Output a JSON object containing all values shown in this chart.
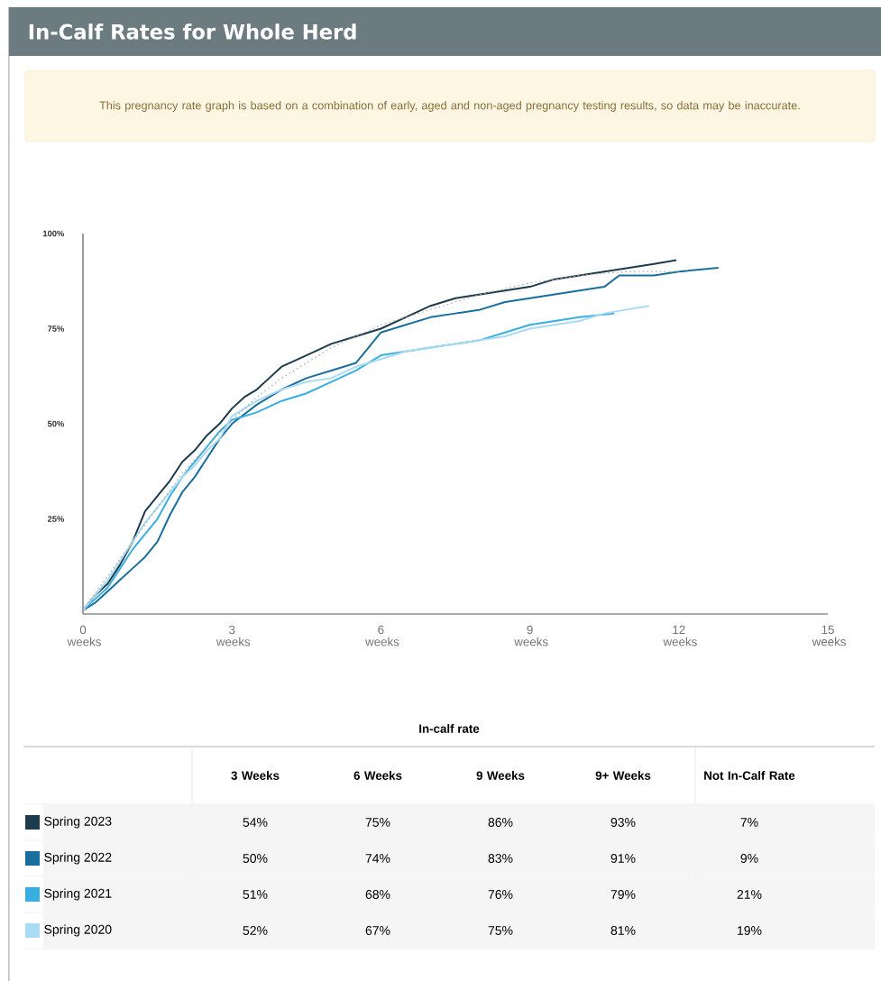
{
  "chart_data": {
    "type": "line",
    "title": "In-Calf Rates for Whole Herd",
    "xlim": [
      0,
      15
    ],
    "ylim": [
      0,
      100
    ],
    "xticks": [
      {
        "value": 0,
        "label": "0 weeks"
      },
      {
        "value": 3,
        "label": "3 weeks"
      },
      {
        "value": 6,
        "label": "6 weeks"
      },
      {
        "value": 9,
        "label": "9 weeks"
      },
      {
        "value": 12,
        "label": "12 weeks"
      },
      {
        "value": 15,
        "label": "15 weeks"
      }
    ],
    "yticks": [
      {
        "value": 25,
        "label": "25%"
      },
      {
        "value": 50,
        "label": "50%"
      },
      {
        "value": 75,
        "label": "75%"
      },
      {
        "value": 100,
        "label": "100%"
      }
    ],
    "grid": false,
    "legend": "bottom",
    "line_style": "solid",
    "series": [
      {
        "name": "Spring 2023",
        "color": "#1d3b4b",
        "x": [
          0,
          0.25,
          0.5,
          0.75,
          1,
          1.25,
          1.5,
          1.75,
          2,
          2.25,
          2.5,
          2.75,
          3,
          3.25,
          3.5,
          3.75,
          4,
          4.5,
          5,
          5.5,
          6,
          6.5,
          7,
          7.5,
          8,
          8.5,
          9,
          9.5,
          10,
          10.5,
          11,
          11.5,
          11.95
        ],
        "values": [
          1,
          5,
          8,
          13,
          19,
          27,
          31,
          35,
          40,
          43,
          47,
          50,
          54,
          57,
          59,
          62,
          65,
          68,
          71,
          73,
          75,
          78,
          81,
          83,
          84,
          85,
          86,
          88,
          89,
          90,
          91,
          92,
          93
        ]
      },
      {
        "name": "Spring 2022",
        "color": "#1a6e9e",
        "x": [
          0,
          0.25,
          0.5,
          0.75,
          1,
          1.25,
          1.5,
          1.75,
          2,
          2.25,
          2.5,
          2.75,
          3,
          3.5,
          4,
          4.5,
          5,
          5.5,
          5.75,
          6,
          6.5,
          7,
          7.5,
          8,
          8.5,
          9,
          9.5,
          10,
          10.5,
          10.8,
          11.5,
          12,
          12.8
        ],
        "values": [
          1,
          3,
          6,
          9,
          12,
          15,
          19,
          26,
          32,
          36,
          41,
          46,
          50,
          55,
          59,
          62,
          64,
          66,
          70,
          74,
          76,
          78,
          79,
          80,
          82,
          83,
          84,
          85,
          86,
          89,
          89,
          90,
          91
        ]
      },
      {
        "name": "Spring 2021",
        "color": "#3aaee0",
        "x": [
          0,
          0.25,
          0.5,
          0.75,
          1,
          1.25,
          1.5,
          1.75,
          2,
          2.25,
          2.5,
          2.75,
          3,
          3.5,
          4,
          4.5,
          5,
          5.5,
          6,
          6.5,
          7,
          7.5,
          8,
          8.5,
          9,
          9.5,
          10,
          10.7
        ],
        "values": [
          1,
          4,
          7,
          12,
          17,
          21,
          25,
          31,
          36,
          40,
          44,
          48,
          51,
          53,
          56,
          58,
          61,
          64,
          68,
          69,
          70,
          71,
          72,
          74,
          76,
          77,
          78,
          79
        ]
      },
      {
        "name": "Spring 2020",
        "color": "#a9dbf3",
        "x": [
          0,
          0.25,
          0.5,
          0.75,
          1,
          1.25,
          1.5,
          1.75,
          2,
          2.25,
          2.5,
          2.75,
          3,
          3.5,
          4,
          4.5,
          5,
          5.5,
          6,
          6.5,
          7,
          7.5,
          8,
          8.5,
          9,
          9.5,
          10,
          10.5,
          11.4
        ],
        "values": [
          1,
          5,
          9,
          14,
          19,
          24,
          28,
          32,
          36,
          39,
          43,
          46,
          52,
          56,
          59,
          61,
          62,
          65,
          67,
          69,
          70,
          71,
          72,
          73,
          75,
          76,
          77,
          79,
          81
        ]
      },
      {
        "color": "#aaaaaa",
        "line_style": "dotted",
        "x": [
          0,
          0.5,
          1,
          1.5,
          2,
          2.5,
          3,
          3.5,
          4,
          4.5,
          5,
          5.5,
          6,
          7,
          8,
          9,
          10,
          11,
          12
        ],
        "values": [
          1,
          10,
          19,
          28,
          37,
          44,
          51,
          57,
          62,
          66,
          70,
          73,
          76,
          80,
          84,
          87,
          89,
          90,
          90
        ]
      }
    ],
    "annotations": [
      "This pregnancy rate graph is based on a combination of early, aged and non-aged pregnancy testing results, so data may be inaccurate.",
      "In-calf rate",
      "3 Weeks",
      "6 Weeks",
      "9 Weeks",
      "9+ Weeks",
      "Not In-Calf Rate",
      "54%",
      "75%",
      "86%",
      "93%",
      "7%",
      "50%",
      "74%",
      "83%",
      "91%",
      "9%",
      "51%",
      "68%",
      "76%",
      "79%",
      "21%",
      "52%",
      "67%",
      "75%",
      "81%",
      "19%"
    ]
  }
}
